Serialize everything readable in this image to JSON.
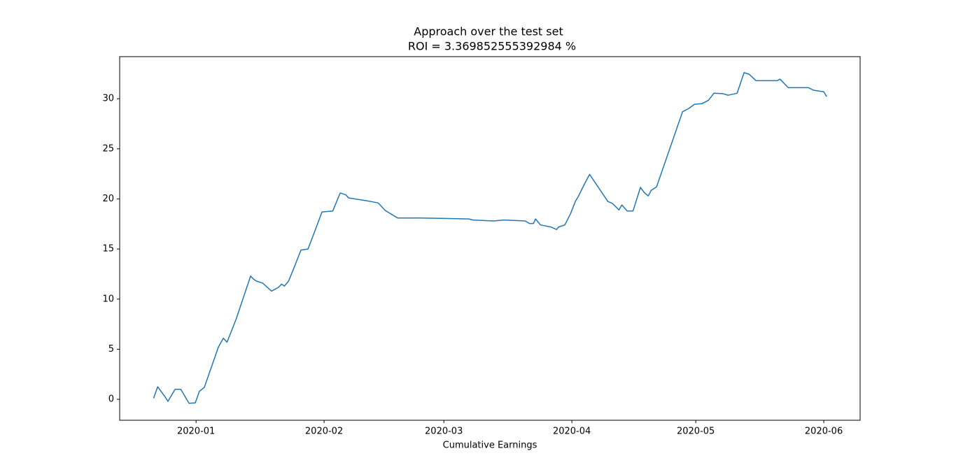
{
  "chart_data": {
    "type": "line",
    "title": "Approach over the test set",
    "subtitle": "ROI = 3.369852555392984 %",
    "x_label": "Cumulative Earnings",
    "color": "#1f77b4",
    "x": [
      -10.3,
      -9.3,
      -7.6,
      -6.8,
      -5.1,
      -3.7,
      -1.7,
      -0.2,
      0.8,
      2.0,
      5.4,
      6.6,
      7.5,
      9.7,
      13.2,
      13.9,
      14.6,
      16.1,
      18.3,
      20.0,
      20.7,
      21.4,
      22.4,
      23.7,
      25.4,
      27.1,
      28.5,
      30.5,
      33.1,
      34.9,
      36.3,
      36.9,
      41.5,
      44.1,
      45.8,
      48.8,
      54.2,
      66.1,
      67.0,
      72.0,
      74.6,
      79.7,
      80.7,
      81.7,
      82.2,
      83.4,
      85.9,
      87.3,
      87.8,
      89.3,
      90.7,
      91.9,
      92.5,
      94.2,
      95.3,
      99.7,
      100.8,
      102.4,
      103.1,
      104.4,
      105.8,
      107.6,
      108.6,
      109.5,
      110.2,
      111.5,
      117.8,
      119.2,
      120.7,
      122.5,
      124.1,
      125.4,
      127.6,
      128.8,
      131.0,
      132.7,
      133.9,
      135.6,
      140.7,
      141.4,
      143.4,
      148.3,
      149.5,
      152.0,
      152.7
    ],
    "values": [
      0.1,
      1.25,
      0.3,
      -0.2,
      1.0,
      1.0,
      -0.4,
      -0.35,
      0.8,
      1.2,
      5.2,
      6.1,
      5.7,
      8.0,
      12.3,
      12.0,
      11.8,
      11.6,
      10.8,
      11.2,
      11.5,
      11.3,
      11.8,
      13.1,
      14.9,
      15.0,
      16.5,
      18.7,
      18.8,
      20.6,
      20.4,
      20.1,
      19.8,
      19.6,
      18.85,
      18.1,
      18.1,
      18.0,
      17.9,
      17.8,
      17.9,
      17.8,
      17.55,
      17.55,
      18.0,
      17.4,
      17.2,
      16.95,
      17.2,
      17.4,
      18.55,
      19.8,
      20.2,
      21.6,
      22.45,
      19.75,
      19.55,
      18.9,
      19.4,
      18.8,
      18.8,
      21.15,
      20.6,
      20.3,
      20.85,
      21.2,
      28.7,
      29.0,
      29.45,
      29.5,
      29.85,
      30.55,
      30.5,
      30.35,
      30.55,
      32.6,
      32.45,
      31.8,
      31.8,
      31.95,
      31.1,
      31.1,
      30.85,
      30.7,
      30.2
    ],
    "xlim": [
      -18.5,
      160.8
    ],
    "xticks": [
      {
        "value": 0,
        "label": "2020-01"
      },
      {
        "value": 31,
        "label": "2020-02"
      },
      {
        "value": 60,
        "label": "2020-03"
      },
      {
        "value": 91,
        "label": "2020-04"
      },
      {
        "value": 121,
        "label": "2020-05"
      },
      {
        "value": 152,
        "label": "2020-06"
      }
    ],
    "ylim": [
      -2.09,
      34.2
    ],
    "yticks": [
      0,
      5,
      10,
      15,
      20,
      25,
      30
    ],
    "grid": false
  }
}
